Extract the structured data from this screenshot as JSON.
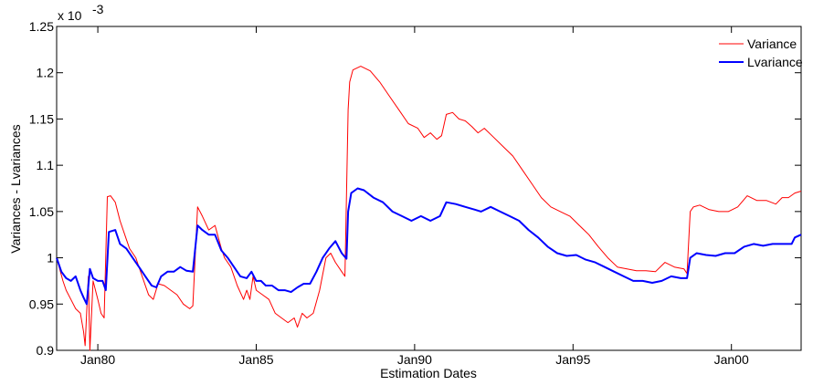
{
  "chart_data": {
    "type": "line",
    "title": "",
    "xlabel": "Estimation Dates",
    "ylabel": "Variances - Lvariances",
    "y_exponent_label": "x 10",
    "y_exponent_power": "-3",
    "x_range": [
      1978.7,
      2002.2
    ],
    "ylim": [
      0.9,
      1.25
    ],
    "x_ticks": [
      {
        "value": 1980,
        "label": "Jan80"
      },
      {
        "value": 1985,
        "label": "Jan85"
      },
      {
        "value": 1990,
        "label": "Jan90"
      },
      {
        "value": 1995,
        "label": "Jan95"
      },
      {
        "value": 2000,
        "label": "Jan00"
      }
    ],
    "y_ticks": [
      {
        "value": 0.9,
        "label": "0.9"
      },
      {
        "value": 0.95,
        "label": "0.95"
      },
      {
        "value": 1.0,
        "label": "1"
      },
      {
        "value": 1.05,
        "label": "1.05"
      },
      {
        "value": 1.1,
        "label": "1.1"
      },
      {
        "value": 1.15,
        "label": "1.15"
      },
      {
        "value": 1.2,
        "label": "1.2"
      },
      {
        "value": 1.25,
        "label": "1.25"
      }
    ],
    "grid": false,
    "legend_position": "top-right",
    "series": [
      {
        "name": "Variance",
        "color": "#ff0000",
        "points": [
          [
            1978.7,
            1.0
          ],
          [
            1978.9,
            0.975
          ],
          [
            1979.0,
            0.965
          ],
          [
            1979.15,
            0.955
          ],
          [
            1979.3,
            0.945
          ],
          [
            1979.45,
            0.94
          ],
          [
            1979.55,
            0.92
          ],
          [
            1979.6,
            0.905
          ],
          [
            1979.7,
            0.98
          ],
          [
            1979.75,
            0.9
          ],
          [
            1979.85,
            0.975
          ],
          [
            1980.0,
            0.955
          ],
          [
            1980.1,
            0.94
          ],
          [
            1980.2,
            0.935
          ],
          [
            1980.3,
            1.066
          ],
          [
            1980.4,
            1.067
          ],
          [
            1980.55,
            1.06
          ],
          [
            1980.7,
            1.04
          ],
          [
            1980.9,
            1.02
          ],
          [
            1981.0,
            1.01
          ],
          [
            1981.2,
            1.0
          ],
          [
            1981.4,
            0.98
          ],
          [
            1981.6,
            0.96
          ],
          [
            1981.75,
            0.955
          ],
          [
            1981.9,
            0.972
          ],
          [
            1982.1,
            0.97
          ],
          [
            1982.3,
            0.965
          ],
          [
            1982.5,
            0.96
          ],
          [
            1982.7,
            0.95
          ],
          [
            1982.9,
            0.945
          ],
          [
            1983.0,
            0.948
          ],
          [
            1983.15,
            1.055
          ],
          [
            1983.3,
            1.045
          ],
          [
            1983.5,
            1.03
          ],
          [
            1983.7,
            1.035
          ],
          [
            1983.9,
            1.01
          ],
          [
            1984.0,
            1.0
          ],
          [
            1984.2,
            0.99
          ],
          [
            1984.4,
            0.97
          ],
          [
            1984.6,
            0.955
          ],
          [
            1984.7,
            0.965
          ],
          [
            1984.8,
            0.955
          ],
          [
            1984.9,
            0.98
          ],
          [
            1985.0,
            0.965
          ],
          [
            1985.2,
            0.96
          ],
          [
            1985.4,
            0.955
          ],
          [
            1985.6,
            0.94
          ],
          [
            1985.8,
            0.935
          ],
          [
            1986.0,
            0.93
          ],
          [
            1986.2,
            0.935
          ],
          [
            1986.3,
            0.925
          ],
          [
            1986.45,
            0.94
          ],
          [
            1986.6,
            0.935
          ],
          [
            1986.8,
            0.94
          ],
          [
            1987.0,
            0.965
          ],
          [
            1987.2,
            1.0
          ],
          [
            1987.35,
            1.005
          ],
          [
            1987.5,
            0.995
          ],
          [
            1987.7,
            0.985
          ],
          [
            1987.8,
            0.98
          ],
          [
            1987.9,
            1.16
          ],
          [
            1987.95,
            1.19
          ],
          [
            1988.05,
            1.203
          ],
          [
            1988.3,
            1.207
          ],
          [
            1988.6,
            1.202
          ],
          [
            1988.9,
            1.19
          ],
          [
            1989.2,
            1.175
          ],
          [
            1989.5,
            1.16
          ],
          [
            1989.8,
            1.145
          ],
          [
            1990.1,
            1.14
          ],
          [
            1990.3,
            1.13
          ],
          [
            1990.5,
            1.135
          ],
          [
            1990.7,
            1.128
          ],
          [
            1990.85,
            1.132
          ],
          [
            1991.0,
            1.155
          ],
          [
            1991.2,
            1.157
          ],
          [
            1991.4,
            1.15
          ],
          [
            1991.6,
            1.148
          ],
          [
            1991.8,
            1.142
          ],
          [
            1992.0,
            1.135
          ],
          [
            1992.2,
            1.14
          ],
          [
            1992.5,
            1.13
          ],
          [
            1992.8,
            1.12
          ],
          [
            1993.1,
            1.11
          ],
          [
            1993.4,
            1.095
          ],
          [
            1993.7,
            1.08
          ],
          [
            1994.0,
            1.065
          ],
          [
            1994.3,
            1.055
          ],
          [
            1994.6,
            1.05
          ],
          [
            1994.9,
            1.045
          ],
          [
            1995.2,
            1.035
          ],
          [
            1995.5,
            1.025
          ],
          [
            1995.8,
            1.012
          ],
          [
            1996.1,
            1.0
          ],
          [
            1996.4,
            0.99
          ],
          [
            1996.7,
            0.988
          ],
          [
            1997.0,
            0.986
          ],
          [
            1997.3,
            0.986
          ],
          [
            1997.6,
            0.985
          ],
          [
            1997.9,
            0.995
          ],
          [
            1998.2,
            0.99
          ],
          [
            1998.5,
            0.988
          ],
          [
            1998.6,
            0.983
          ],
          [
            1998.7,
            1.05
          ],
          [
            1998.8,
            1.055
          ],
          [
            1999.0,
            1.057
          ],
          [
            1999.3,
            1.052
          ],
          [
            1999.6,
            1.05
          ],
          [
            1999.9,
            1.05
          ],
          [
            2000.2,
            1.055
          ],
          [
            2000.5,
            1.067
          ],
          [
            2000.8,
            1.062
          ],
          [
            2001.1,
            1.062
          ],
          [
            2001.4,
            1.058
          ],
          [
            2001.6,
            1.065
          ],
          [
            2001.8,
            1.065
          ],
          [
            2002.0,
            1.07
          ],
          [
            2002.2,
            1.072
          ]
        ]
      },
      {
        "name": "Lvariance",
        "color": "#0000ff",
        "points": [
          [
            1978.7,
            1.0
          ],
          [
            1978.85,
            0.985
          ],
          [
            1979.0,
            0.978
          ],
          [
            1979.15,
            0.975
          ],
          [
            1979.3,
            0.98
          ],
          [
            1979.45,
            0.965
          ],
          [
            1979.55,
            0.957
          ],
          [
            1979.65,
            0.95
          ],
          [
            1979.75,
            0.988
          ],
          [
            1979.85,
            0.978
          ],
          [
            1980.0,
            0.975
          ],
          [
            1980.15,
            0.975
          ],
          [
            1980.25,
            0.965
          ],
          [
            1980.35,
            1.028
          ],
          [
            1980.55,
            1.03
          ],
          [
            1980.7,
            1.015
          ],
          [
            1980.9,
            1.01
          ],
          [
            1981.1,
            1.0
          ],
          [
            1981.3,
            0.99
          ],
          [
            1981.5,
            0.98
          ],
          [
            1981.7,
            0.97
          ],
          [
            1981.85,
            0.968
          ],
          [
            1982.0,
            0.98
          ],
          [
            1982.2,
            0.985
          ],
          [
            1982.4,
            0.985
          ],
          [
            1982.6,
            0.99
          ],
          [
            1982.8,
            0.986
          ],
          [
            1983.0,
            0.985
          ],
          [
            1983.15,
            1.035
          ],
          [
            1983.3,
            1.03
          ],
          [
            1983.5,
            1.025
          ],
          [
            1983.7,
            1.025
          ],
          [
            1983.9,
            1.008
          ],
          [
            1984.1,
            1.0
          ],
          [
            1984.3,
            0.99
          ],
          [
            1984.5,
            0.98
          ],
          [
            1984.7,
            0.978
          ],
          [
            1984.85,
            0.985
          ],
          [
            1985.0,
            0.975
          ],
          [
            1985.15,
            0.975
          ],
          [
            1985.3,
            0.97
          ],
          [
            1985.5,
            0.97
          ],
          [
            1985.7,
            0.965
          ],
          [
            1985.9,
            0.965
          ],
          [
            1986.1,
            0.963
          ],
          [
            1986.3,
            0.968
          ],
          [
            1986.5,
            0.972
          ],
          [
            1986.7,
            0.972
          ],
          [
            1986.9,
            0.985
          ],
          [
            1987.1,
            1.0
          ],
          [
            1987.3,
            1.01
          ],
          [
            1987.5,
            1.018
          ],
          [
            1987.7,
            1.005
          ],
          [
            1987.85,
            0.999
          ],
          [
            1987.9,
            1.05
          ],
          [
            1988.0,
            1.07
          ],
          [
            1988.2,
            1.075
          ],
          [
            1988.4,
            1.073
          ],
          [
            1988.7,
            1.065
          ],
          [
            1989.0,
            1.06
          ],
          [
            1989.3,
            1.05
          ],
          [
            1989.6,
            1.045
          ],
          [
            1989.9,
            1.04
          ],
          [
            1990.2,
            1.045
          ],
          [
            1990.5,
            1.04
          ],
          [
            1990.8,
            1.045
          ],
          [
            1991.0,
            1.06
          ],
          [
            1991.3,
            1.058
          ],
          [
            1991.6,
            1.055
          ],
          [
            1991.9,
            1.052
          ],
          [
            1992.1,
            1.05
          ],
          [
            1992.4,
            1.055
          ],
          [
            1992.7,
            1.05
          ],
          [
            1993.0,
            1.045
          ],
          [
            1993.3,
            1.04
          ],
          [
            1993.6,
            1.03
          ],
          [
            1993.9,
            1.022
          ],
          [
            1994.2,
            1.012
          ],
          [
            1994.5,
            1.005
          ],
          [
            1994.8,
            1.002
          ],
          [
            1995.1,
            1.003
          ],
          [
            1995.4,
            0.998
          ],
          [
            1995.7,
            0.995
          ],
          [
            1996.0,
            0.99
          ],
          [
            1996.3,
            0.985
          ],
          [
            1996.6,
            0.98
          ],
          [
            1996.9,
            0.975
          ],
          [
            1997.2,
            0.975
          ],
          [
            1997.5,
            0.973
          ],
          [
            1997.8,
            0.975
          ],
          [
            1998.1,
            0.98
          ],
          [
            1998.4,
            0.978
          ],
          [
            1998.6,
            0.978
          ],
          [
            1998.7,
            1.0
          ],
          [
            1998.9,
            1.005
          ],
          [
            1999.2,
            1.003
          ],
          [
            1999.5,
            1.002
          ],
          [
            1999.8,
            1.005
          ],
          [
            2000.1,
            1.005
          ],
          [
            2000.4,
            1.012
          ],
          [
            2000.7,
            1.015
          ],
          [
            2001.0,
            1.013
          ],
          [
            2001.3,
            1.015
          ],
          [
            2001.6,
            1.015
          ],
          [
            2001.9,
            1.015
          ],
          [
            2002.0,
            1.022
          ],
          [
            2002.2,
            1.025
          ]
        ]
      }
    ]
  }
}
